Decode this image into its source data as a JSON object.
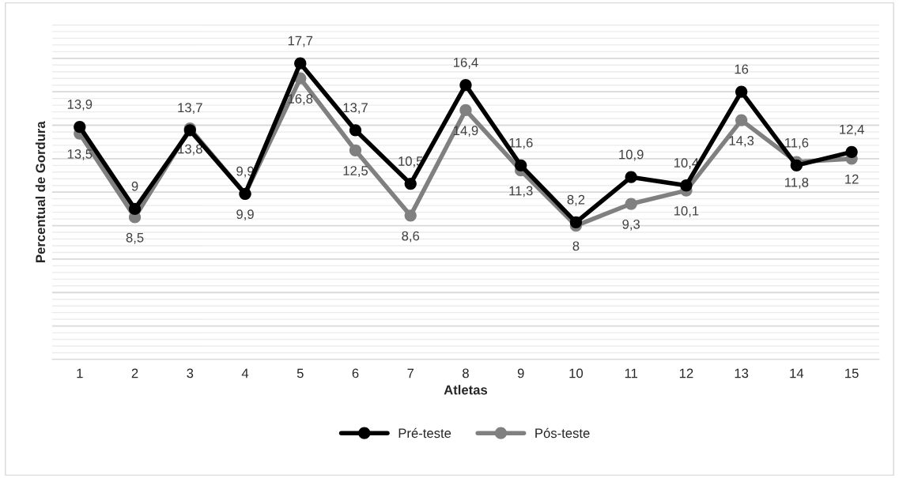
{
  "chart_data": {
    "type": "line",
    "xlabel": "Atletas",
    "ylabel": "Percentual de Gordura",
    "categories": [
      "1",
      "2",
      "3",
      "4",
      "5",
      "6",
      "7",
      "8",
      "9",
      "10",
      "11",
      "12",
      "13",
      "14",
      "15"
    ],
    "series": [
      {
        "name": "Pré-teste",
        "color": "#000000",
        "values": [
          13.9,
          9,
          13.7,
          9.9,
          17.7,
          13.7,
          10.5,
          16.4,
          11.6,
          8.2,
          10.9,
          10.4,
          16,
          11.6,
          12.4
        ],
        "value_labels": [
          "13,9",
          "9",
          "13,7",
          "9,9",
          "17,7",
          "13,7",
          "10,5",
          "16,4",
          "11,6",
          "8,2",
          "10,9",
          "10,4",
          "16",
          "11,6",
          "12,4"
        ]
      },
      {
        "name": "Pós-teste",
        "color": "#808080",
        "values": [
          13.5,
          8.5,
          13.8,
          9.9,
          16.8,
          12.5,
          8.6,
          14.9,
          11.3,
          8,
          9.3,
          10.1,
          14.3,
          11.8,
          12
        ],
        "value_labels": [
          "13,5",
          "8,5",
          "13,8",
          "9,9",
          "16,8",
          "12,5",
          "8,6",
          "14,9",
          "11,3",
          "8",
          "9,3",
          "10,1",
          "14,3",
          "11,8",
          "12"
        ]
      }
    ],
    "ylim": [
      0,
      20
    ],
    "yticks": [
      {
        "value": 0,
        "label": null
      },
      {
        "value": 2,
        "label": null
      },
      {
        "value": 4,
        "label": null
      },
      {
        "value": 6,
        "label": null
      },
      {
        "value": 8,
        "label": null
      },
      {
        "value": 10,
        "label": null
      },
      {
        "value": 12,
        "label": null
      },
      {
        "value": 14,
        "label": null
      },
      {
        "value": 16,
        "label": null
      },
      {
        "value": 18,
        "label": null
      },
      {
        "value": 20,
        "label": null
      }
    ],
    "tick_labels": "x",
    "grid": "y",
    "legend": "bottom",
    "marker": "circle",
    "line_style": "solid"
  }
}
